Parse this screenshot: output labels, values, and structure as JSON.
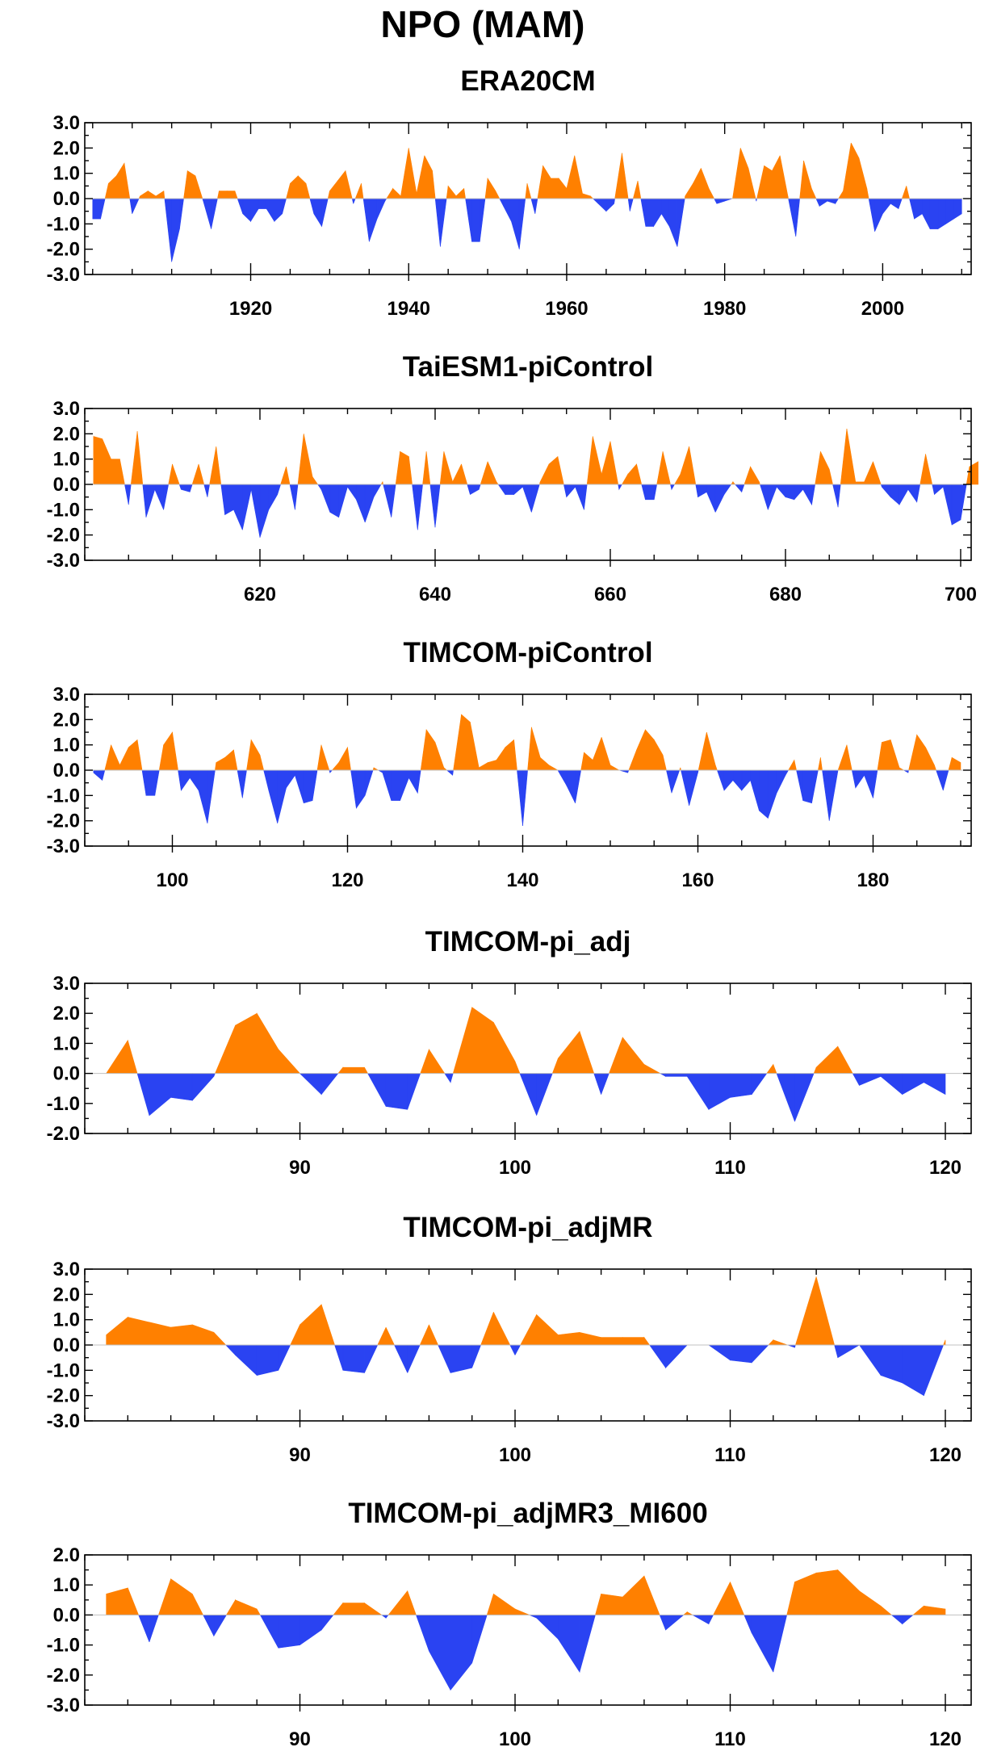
{
  "figure": {
    "title": "NPO (MAM)",
    "colors": {
      "positive": "#ff8000",
      "negative": "#2a43f2",
      "axis": "#000000",
      "zero_line": "#c0c0c0"
    }
  },
  "chart_data": [
    {
      "type": "area",
      "title": "ERA20CM",
      "xlabel": "",
      "ylabel": "",
      "xlim": [
        1900,
        2010
      ],
      "ylim": [
        -3.0,
        3.0
      ],
      "yticks": [
        "3.0",
        "2.0",
        "1.0",
        "0.0",
        "-1.0",
        "-2.0",
        "-3.0"
      ],
      "xticks": [
        "1920",
        "1940",
        "1960",
        "1980",
        "2000"
      ],
      "grid": false,
      "x_start": 1900,
      "x_step": 1,
      "values": [
        -0.8,
        -0.8,
        0.6,
        0.9,
        1.4,
        -0.6,
        0.1,
        0.3,
        0.1,
        0.3,
        -2.5,
        -1.2,
        1.1,
        0.9,
        -0.1,
        -1.2,
        0.3,
        0.3,
        0.3,
        -0.6,
        -0.9,
        -0.4,
        -0.4,
        -0.9,
        -0.6,
        0.6,
        0.9,
        0.6,
        -0.6,
        -1.1,
        0.3,
        0.7,
        1.1,
        -0.2,
        0.6,
        -1.7,
        -0.8,
        -0.1,
        0.4,
        0.1,
        2.0,
        0.2,
        1.7,
        1.1,
        -1.9,
        0.5,
        0.1,
        0.4,
        -1.7,
        -1.7,
        0.8,
        0.3,
        -0.3,
        -0.9,
        -2.0,
        0.6,
        -0.6,
        1.3,
        0.8,
        0.8,
        0.4,
        1.7,
        0.2,
        0.1,
        -0.2,
        -0.5,
        -0.2,
        1.8,
        -0.5,
        0.7,
        -1.1,
        -1.1,
        -0.6,
        -1.1,
        -1.9,
        0.1,
        0.6,
        1.2,
        0.4,
        -0.2,
        -0.1,
        0.0,
        2.0,
        1.2,
        -0.1,
        1.3,
        1.1,
        1.7,
        0.1,
        -1.5,
        1.5,
        0.4,
        -0.3,
        -0.1,
        -0.2,
        0.3,
        2.2,
        1.6,
        0.4,
        -1.3,
        -0.6,
        -0.2,
        -0.4,
        0.5,
        -0.8,
        -0.6,
        -1.2,
        -1.2,
        -1.0,
        -0.8,
        -0.6
      ]
    },
    {
      "type": "area",
      "title": "TaiESM1-piControl",
      "xlabel": "",
      "ylabel": "",
      "xlim": [
        601,
        700
      ],
      "ylim": [
        -3.0,
        3.0
      ],
      "yticks": [
        "3.0",
        "2.0",
        "1.0",
        "0.0",
        "-1.0",
        "-2.0",
        "-3.0"
      ],
      "xticks": [
        "620",
        "640",
        "660",
        "680",
        "700"
      ],
      "grid": false,
      "x_start": 601,
      "x_step": 1,
      "values": [
        1.9,
        1.8,
        1.0,
        1.0,
        -0.8,
        2.1,
        -1.3,
        -0.2,
        -1.0,
        0.8,
        -0.2,
        -0.3,
        0.8,
        -0.5,
        1.5,
        -1.2,
        -1.0,
        -1.8,
        -0.2,
        -2.1,
        -1.0,
        -0.4,
        0.7,
        -1.0,
        2.0,
        0.3,
        -0.2,
        -1.1,
        -1.3,
        -0.1,
        -0.6,
        -1.5,
        -0.5,
        0.1,
        -1.3,
        1.3,
        1.1,
        -1.8,
        1.3,
        -1.7,
        1.3,
        0.1,
        0.8,
        -0.4,
        -0.2,
        0.9,
        0.1,
        -0.4,
        -0.4,
        -0.1,
        -1.1,
        0.1,
        0.8,
        1.1,
        -0.5,
        -0.1,
        -1.0,
        1.9,
        0.4,
        1.7,
        -0.2,
        0.4,
        0.8,
        -0.6,
        -0.6,
        1.3,
        -0.2,
        0.4,
        1.5,
        -0.5,
        -0.3,
        -1.1,
        -0.4,
        0.1,
        -0.3,
        0.7,
        0.1,
        -1.0,
        -0.1,
        -0.5,
        -0.6,
        -0.2,
        -0.8,
        1.3,
        0.6,
        -0.9,
        2.2,
        0.1,
        0.1,
        0.9,
        -0.1,
        -0.5,
        -0.8,
        -0.2,
        -0.7,
        1.2,
        -0.4,
        -0.1,
        -1.6,
        -1.4,
        0.7,
        0.9
      ]
    },
    {
      "type": "area",
      "title": "TIMCOM-piControl",
      "xlabel": "",
      "ylabel": "",
      "xlim": [
        91,
        190
      ],
      "ylim": [
        -3.0,
        3.0
      ],
      "yticks": [
        "3.0",
        "2.0",
        "1.0",
        "0.0",
        "-1.0",
        "-2.0",
        "-3.0"
      ],
      "xticks": [
        "100",
        "120",
        "140",
        "160",
        "180"
      ],
      "grid": false,
      "x_start": 91,
      "x_step": 1,
      "values": [
        -0.1,
        -0.4,
        1.0,
        0.2,
        0.9,
        1.2,
        -1.0,
        -1.0,
        1.0,
        1.5,
        -0.8,
        -0.3,
        -0.8,
        -2.1,
        0.3,
        0.5,
        0.8,
        -1.1,
        1.2,
        0.6,
        -0.8,
        -2.1,
        -0.7,
        -0.2,
        -1.3,
        -1.2,
        1.0,
        -0.1,
        0.3,
        0.9,
        -1.5,
        -1.0,
        0.1,
        -0.1,
        -1.2,
        -1.2,
        -0.3,
        -0.9,
        1.6,
        1.1,
        0.1,
        -0.2,
        2.2,
        1.9,
        0.1,
        0.3,
        0.4,
        0.9,
        1.2,
        -2.2,
        1.7,
        0.5,
        0.2,
        0.0,
        -0.6,
        -1.3,
        0.7,
        0.4,
        1.3,
        0.2,
        0.0,
        -0.1,
        0.8,
        1.6,
        1.2,
        0.6,
        -0.9,
        0.1,
        -1.4,
        -0.1,
        1.5,
        0.2,
        -0.8,
        -0.4,
        -0.8,
        -0.4,
        -1.6,
        -1.9,
        -0.9,
        -0.2,
        0.4,
        -1.2,
        -1.3,
        0.5,
        -2.0,
        0.0,
        1.0,
        -0.7,
        -0.2,
        -1.1,
        1.1,
        1.2,
        0.1,
        -0.1,
        1.4,
        0.9,
        0.2,
        -0.8,
        0.5,
        0.3
      ]
    },
    {
      "type": "area",
      "title": "TIMCOM-pi_adj",
      "xlabel": "",
      "ylabel": "",
      "xlim": [
        81,
        120
      ],
      "ylim": [
        -2.0,
        3.0
      ],
      "yticks": [
        "3.0",
        "2.0",
        "1.0",
        "0.0",
        "-1.0",
        "-2.0"
      ],
      "xticks": [
        "90",
        "100",
        "110",
        "120"
      ],
      "grid": false,
      "x_start": 81,
      "x_step": 1,
      "values": [
        0.0,
        1.1,
        -1.4,
        -0.8,
        -0.9,
        -0.1,
        1.6,
        2.0,
        0.8,
        0.0,
        -0.7,
        0.2,
        0.2,
        -1.1,
        -1.2,
        0.8,
        -0.3,
        2.2,
        1.7,
        0.4,
        -1.4,
        0.5,
        1.4,
        -0.7,
        1.2,
        0.3,
        -0.1,
        -0.1,
        -1.2,
        -0.8,
        -0.7,
        0.3,
        -1.6,
        0.2,
        0.9,
        -0.4,
        -0.1,
        -0.7,
        -0.3,
        -0.7
      ]
    },
    {
      "type": "area",
      "title": "TIMCOM-pi_adjMR",
      "xlabel": "",
      "ylabel": "",
      "xlim": [
        81,
        120
      ],
      "ylim": [
        -3.0,
        3.0
      ],
      "yticks": [
        "3.0",
        "2.0",
        "1.0",
        "0.0",
        "-1.0",
        "-2.0",
        "-3.0"
      ],
      "xticks": [
        "90",
        "100",
        "110",
        "120"
      ],
      "grid": false,
      "x_start": 81,
      "x_step": 1,
      "values": [
        0.4,
        1.1,
        0.9,
        0.7,
        0.8,
        0.5,
        -0.4,
        -1.2,
        -1.0,
        0.8,
        1.6,
        -1.0,
        -1.1,
        0.7,
        -1.1,
        0.8,
        -1.1,
        -0.9,
        1.3,
        -0.4,
        1.2,
        0.4,
        0.5,
        0.3,
        0.3,
        0.3,
        -0.9,
        0.0,
        0.0,
        -0.6,
        -0.7,
        0.2,
        -0.1,
        2.7,
        -0.5,
        0.0,
        -1.2,
        -1.5,
        -2.0,
        0.2
      ]
    },
    {
      "type": "area",
      "title": "TIMCOM-pi_adjMR3_MI600",
      "xlabel": "",
      "ylabel": "",
      "xlim": [
        81,
        120
      ],
      "ylim": [
        -3.0,
        2.0
      ],
      "yticks": [
        "2.0",
        "1.0",
        "0.0",
        "-1.0",
        "-2.0",
        "-3.0"
      ],
      "xticks": [
        "90",
        "100",
        "110",
        "120"
      ],
      "grid": false,
      "x_start": 81,
      "x_step": 1,
      "values": [
        0.7,
        0.9,
        -0.9,
        1.2,
        0.7,
        -0.7,
        0.5,
        0.2,
        -1.1,
        -1.0,
        -0.5,
        0.4,
        0.4,
        -0.1,
        0.8,
        -1.2,
        -2.5,
        -1.6,
        0.7,
        0.2,
        -0.1,
        -0.8,
        -1.9,
        0.7,
        0.6,
        1.3,
        -0.5,
        0.1,
        -0.3,
        1.1,
        -0.6,
        -1.9,
        1.1,
        1.4,
        1.5,
        0.8,
        0.3,
        -0.3,
        0.3,
        0.2
      ]
    }
  ]
}
